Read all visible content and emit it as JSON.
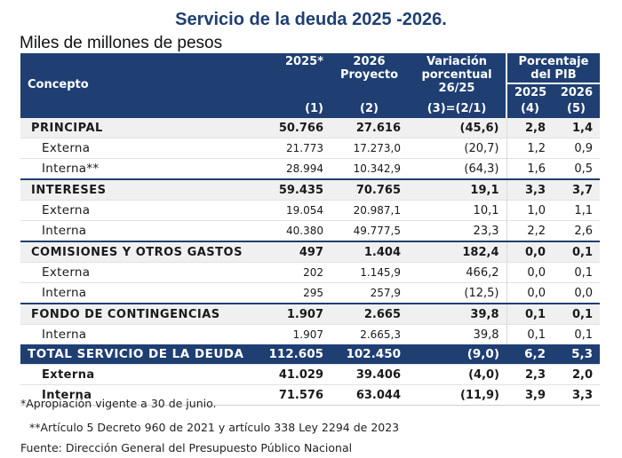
{
  "title": "Servicio de la deuda 2025 -2026.",
  "subtitle": "Miles de millones de pesos",
  "header": {
    "concepto": "Concepto",
    "col1": "2025*",
    "col2_line1": "2026",
    "col2_line2": "Proyecto",
    "col3_line1": "Variación",
    "col3_line2": "porcentual",
    "col3_line3": "26/25",
    "pib_group": "Porcentaje del PIB",
    "pib_2025": "2025",
    "pib_2026": "2026",
    "idx1": "(1)",
    "idx2": "(2)",
    "idx3": "(3)=(2/1)",
    "idx4": "(4)",
    "idx5": "(5)"
  },
  "rows": [
    {
      "label": "PRINCIPAL",
      "v1": "50.766",
      "v2": "27.616",
      "v3": "(45,6)",
      "v4": "2,8",
      "v5": "1,4"
    },
    {
      "label": "Externa",
      "v1": "21.773",
      "v2": "17.273,0",
      "v3": "(20,7)",
      "v4": "1,2",
      "v5": "0,9"
    },
    {
      "label": "Interna**",
      "v1": "28.994",
      "v2": "10.342,9",
      "v3": "(64,3)",
      "v4": "1,6",
      "v5": "0,5"
    },
    {
      "label": "INTERESES",
      "v1": "59.435",
      "v2": "70.765",
      "v3": "19,1",
      "v4": "3,3",
      "v5": "3,7"
    },
    {
      "label": "Externa",
      "v1": "19.054",
      "v2": "20.987,1",
      "v3": "10,1",
      "v4": "1,0",
      "v5": "1,1"
    },
    {
      "label": "Interna",
      "v1": "40.380",
      "v2": "49.777,5",
      "v3": "23,3",
      "v4": "2,2",
      "v5": "2,6"
    },
    {
      "label": "COMISIONES Y OTROS GASTOS",
      "v1": "497",
      "v2": "1.404",
      "v3": "182,4",
      "v4": "0,0",
      "v5": "0,1"
    },
    {
      "label": "Externa",
      "v1": "202",
      "v2": "1.145,9",
      "v3": "466,2",
      "v4": "0,0",
      "v5": "0,1"
    },
    {
      "label": "Interna",
      "v1": "295",
      "v2": "257,9",
      "v3": "(12,5)",
      "v4": "0,0",
      "v5": "0,0"
    },
    {
      "label": "FONDO DE CONTINGENCIAS",
      "v1": "1.907",
      "v2": "2.665",
      "v3": "39,8",
      "v4": "0,1",
      "v5": "0,1"
    },
    {
      "label": "Interna",
      "v1": "1.907",
      "v2": "2.665,3",
      "v3": "39,8",
      "v4": "0,1",
      "v5": "0,1"
    },
    {
      "label": "TOTAL SERVICIO DE LA DEUDA",
      "v1": "112.605",
      "v2": "102.450",
      "v3": "(9,0)",
      "v4": "6,2",
      "v5": "5,3"
    },
    {
      "label": "Externa",
      "v1": "41.029",
      "v2": "39.406",
      "v3": "(4,0)",
      "v4": "2,3",
      "v5": "2,0"
    },
    {
      "label": "Interna",
      "v1": "71.576",
      "v2": "63.044",
      "v3": "(11,9)",
      "v4": "3,9",
      "v5": "3,3"
    }
  ],
  "notes": {
    "note1": "*Apropiación vigente a 30 de junio.",
    "note2": "**Artículo 5 Decreto 960 de 2021  y artículo 338 Ley 2294 de 2023",
    "source": "Fuente: Dirección General del Presupuesto Público Nacional"
  },
  "colors": {
    "navy": "#1f3f73",
    "band": "#f0f0f0"
  }
}
